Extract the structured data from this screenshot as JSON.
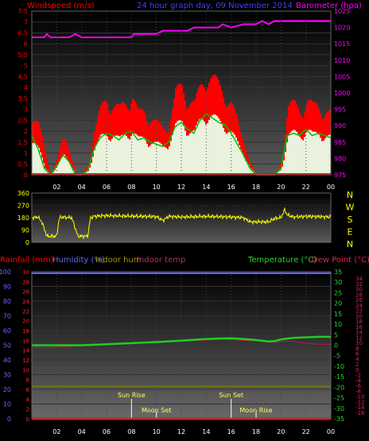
{
  "header": {
    "title": "24 hour graph day, 09 November 2014",
    "left_label": "Windspeed (m/s)",
    "right_label": "Barometer (hpa)"
  },
  "bottom_header": {
    "rainfall": "Rainfall (mm)",
    "humidity": "Humidity (%)",
    "indoor_hum": "Indoor hum",
    "indoor_temp": "Indoor temp",
    "temperature": "Temperature (°C)",
    "dew_point": "Dew Point (°C)"
  },
  "colors": {
    "windspeed_label": "#ff0000",
    "title": "#4040ff",
    "barometer": "#ff00ff",
    "gust": "#ff0000",
    "avg": "#00c000",
    "wind_light": "#e8ffe8",
    "direction": "#ffff00",
    "temperature": "#22cc22",
    "dewpoint": "#cc1144",
    "humidity": "#6666ff",
    "rain": "#ff0000",
    "indoor_hum": "#888800"
  },
  "chart_data": [
    {
      "type": "area",
      "name": "wind_baro",
      "x_ticks": [
        "02",
        "04",
        "06",
        "08",
        "10",
        "12",
        "14",
        "16",
        "18",
        "20",
        "22",
        "00"
      ],
      "y_left_ticks": [
        "7.5",
        "7",
        "6.5",
        "6",
        "5.5",
        "5",
        "4.5",
        "4",
        "3.5",
        "3",
        "2.5",
        "2",
        "1.5",
        "1",
        "0.5",
        "0"
      ],
      "y_right_ticks": [
        "1025",
        "1020",
        "1015",
        "1010",
        "1005",
        "1000",
        "995",
        "990",
        "985",
        "980",
        "975"
      ],
      "ylim_left": [
        0,
        7.5
      ],
      "ylim_right": [
        975,
        1025
      ],
      "xlim_hours": [
        0,
        24
      ],
      "gust": [
        [
          0,
          2.8
        ],
        [
          0.5,
          2.2
        ],
        [
          1,
          1.0
        ],
        [
          1.5,
          0
        ],
        [
          2,
          0.8
        ],
        [
          2.5,
          1.5
        ],
        [
          3,
          1.2
        ],
        [
          3.5,
          0
        ],
        [
          4,
          0
        ],
        [
          4.5,
          0.5
        ],
        [
          5,
          2.0
        ],
        [
          5.5,
          2.8
        ],
        [
          6,
          3.4
        ],
        [
          6.5,
          3.0
        ],
        [
          7,
          2.8
        ],
        [
          7.5,
          3.2
        ],
        [
          8,
          3.5
        ],
        [
          8.5,
          2.6
        ],
        [
          9,
          2.8
        ],
        [
          9.5,
          2.5
        ],
        [
          10,
          2.2
        ],
        [
          10.5,
          2.0
        ],
        [
          11,
          2.3
        ],
        [
          11.5,
          3.5
        ],
        [
          12,
          3.8
        ],
        [
          12.5,
          3.4
        ],
        [
          13,
          3.0
        ],
        [
          13.5,
          3.8
        ],
        [
          14,
          4.5
        ],
        [
          14.5,
          4.1
        ],
        [
          15,
          3.8
        ],
        [
          15.5,
          3.6
        ],
        [
          16,
          3.0
        ],
        [
          16.5,
          2.2
        ],
        [
          17,
          1.5
        ],
        [
          17.5,
          0.5
        ],
        [
          18,
          0
        ],
        [
          18.5,
          0
        ],
        [
          19,
          0
        ],
        [
          19.5,
          0
        ],
        [
          20,
          0.6
        ],
        [
          20.5,
          3.0
        ],
        [
          21,
          3.0
        ],
        [
          21.5,
          2.8
        ],
        [
          22,
          3.3
        ],
        [
          22.5,
          2.9
        ],
        [
          23,
          3.0
        ],
        [
          23.5,
          2.8
        ],
        [
          24,
          2.6
        ]
      ],
      "average": [
        [
          0,
          1.8
        ],
        [
          0.5,
          1.2
        ],
        [
          1,
          0.3
        ],
        [
          1.5,
          0
        ],
        [
          2,
          0.4
        ],
        [
          2.5,
          0.9
        ],
        [
          3,
          0.6
        ],
        [
          3.5,
          0
        ],
        [
          4,
          0
        ],
        [
          4.5,
          0.2
        ],
        [
          5,
          1.2
        ],
        [
          5.5,
          1.7
        ],
        [
          6,
          1.9
        ],
        [
          6.5,
          1.8
        ],
        [
          7,
          1.6
        ],
        [
          7.5,
          1.9
        ],
        [
          8,
          2.0
        ],
        [
          8.5,
          1.6
        ],
        [
          9,
          1.7
        ],
        [
          9.5,
          1.5
        ],
        [
          10,
          1.4
        ],
        [
          10.5,
          1.3
        ],
        [
          11,
          1.5
        ],
        [
          11.5,
          2.2
        ],
        [
          12,
          2.4
        ],
        [
          12.5,
          2.1
        ],
        [
          13,
          1.9
        ],
        [
          13.5,
          2.5
        ],
        [
          14,
          2.8
        ],
        [
          14.5,
          2.6
        ],
        [
          15,
          2.4
        ],
        [
          15.5,
          2.3
        ],
        [
          16,
          1.9
        ],
        [
          16.5,
          1.4
        ],
        [
          17,
          0.9
        ],
        [
          17.5,
          0.3
        ],
        [
          18,
          0
        ],
        [
          18.5,
          0
        ],
        [
          19,
          0
        ],
        [
          19.5,
          0
        ],
        [
          20,
          0.3
        ],
        [
          20.5,
          1.8
        ],
        [
          21,
          1.9
        ],
        [
          21.5,
          1.8
        ],
        [
          22,
          2.1
        ],
        [
          22.5,
          1.8
        ],
        [
          23,
          1.9
        ],
        [
          23.5,
          1.8
        ],
        [
          24,
          1.7
        ]
      ],
      "barometer": [
        [
          0,
          1017
        ],
        [
          1,
          1017
        ],
        [
          1.2,
          1018
        ],
        [
          1.5,
          1017
        ],
        [
          3,
          1017
        ],
        [
          3.5,
          1018
        ],
        [
          4,
          1017
        ],
        [
          8,
          1017
        ],
        [
          8.2,
          1018
        ],
        [
          10,
          1018
        ],
        [
          10.5,
          1019
        ],
        [
          12,
          1019
        ],
        [
          12.5,
          1019
        ],
        [
          13,
          1020
        ],
        [
          14,
          1020
        ],
        [
          15,
          1020
        ],
        [
          15.3,
          1021
        ],
        [
          16,
          1020
        ],
        [
          17,
          1021
        ],
        [
          18,
          1021
        ],
        [
          18.5,
          1022
        ],
        [
          19,
          1021
        ],
        [
          19.5,
          1022
        ],
        [
          20,
          1022
        ],
        [
          22,
          1022
        ],
        [
          24,
          1022
        ]
      ]
    },
    {
      "type": "line",
      "name": "wind_direction",
      "y_left_ticks": [
        "360",
        "270",
        "180",
        "90",
        "0"
      ],
      "y_right_ticks": [
        "N",
        "W",
        "S",
        "E",
        "N"
      ],
      "ylim": [
        0,
        360
      ],
      "xlim_hours": [
        0,
        24
      ],
      "direction": [
        [
          0,
          180
        ],
        [
          0.5,
          185
        ],
        [
          0.8,
          150
        ],
        [
          1,
          100
        ],
        [
          1.2,
          45
        ],
        [
          2,
          45
        ],
        [
          2.2,
          180
        ],
        [
          2.5,
          185
        ],
        [
          3.2,
          180
        ],
        [
          3.5,
          100
        ],
        [
          3.7,
          45
        ],
        [
          4.5,
          45
        ],
        [
          4.7,
          180
        ],
        [
          5,
          190
        ],
        [
          6,
          195
        ],
        [
          8,
          192
        ],
        [
          10,
          188
        ],
        [
          10.5,
          160
        ],
        [
          11,
          190
        ],
        [
          12,
          185
        ],
        [
          14,
          190
        ],
        [
          15,
          188
        ],
        [
          16,
          185
        ],
        [
          17,
          180
        ],
        [
          17.5,
          150
        ],
        [
          18,
          150
        ],
        [
          18.5,
          150
        ],
        [
          19,
          150
        ],
        [
          19.5,
          175
        ],
        [
          20,
          180
        ],
        [
          20.3,
          240
        ],
        [
          20.5,
          200
        ],
        [
          21,
          185
        ],
        [
          22,
          190
        ],
        [
          23,
          188
        ],
        [
          24,
          185
        ]
      ]
    },
    {
      "type": "line",
      "name": "temp_hum_rain",
      "x_ticks": [
        "02",
        "04",
        "06",
        "08",
        "10",
        "12",
        "14",
        "16",
        "18",
        "20",
        "22",
        "00"
      ],
      "y_left_ticks": [
        "100",
        "90",
        "80",
        "70",
        "60",
        "50",
        "40",
        "30",
        "20",
        "10",
        "0"
      ],
      "y_left2_ticks": [
        "30",
        "28",
        "26",
        "24",
        "22",
        "20",
        "18",
        "16",
        "14",
        "12",
        "10",
        "8",
        "6",
        "4",
        "2",
        "0"
      ],
      "y_temp_ticks": [
        "35",
        "30",
        "25",
        "20",
        "15",
        "10",
        "5",
        "0",
        "-5",
        "-10",
        "-15",
        "-20",
        "-25",
        "-30",
        "-35"
      ],
      "y_dew_ticks": [
        "34",
        "32",
        "30",
        "28",
        "26",
        "24",
        "22",
        "20",
        "18",
        "16",
        "14",
        "12",
        "10",
        "8",
        "6",
        "4",
        "2",
        "0",
        "-2",
        "-4",
        "-6",
        "-8",
        "-10",
        "-12",
        "-14",
        "-16"
      ],
      "humidity_ylim": [
        0,
        100
      ],
      "temp_ylim": [
        -35,
        35
      ],
      "xlim_hours": [
        0,
        24
      ],
      "humidity": [
        [
          0,
          99
        ],
        [
          24,
          99
        ]
      ],
      "indoor_hum": [
        [
          0,
          22
        ],
        [
          24,
          22
        ]
      ],
      "rainfall": [
        [
          0,
          0
        ],
        [
          24,
          0
        ]
      ],
      "temperature": [
        [
          0,
          0
        ],
        [
          2,
          0
        ],
        [
          4,
          0
        ],
        [
          6,
          0.5
        ],
        [
          8,
          1
        ],
        [
          10,
          1.5
        ],
        [
          12,
          2.2
        ],
        [
          14,
          3
        ],
        [
          15,
          3.2
        ],
        [
          16,
          3.3
        ],
        [
          17,
          3
        ],
        [
          18,
          2.5
        ],
        [
          18.5,
          2.2
        ],
        [
          19,
          1.8
        ],
        [
          19.5,
          2
        ],
        [
          20,
          2.8
        ],
        [
          21,
          3.5
        ],
        [
          22,
          3.8
        ],
        [
          23,
          4
        ],
        [
          24,
          4
        ]
      ],
      "dew_point": [
        [
          0,
          -1
        ],
        [
          1,
          -1.2
        ],
        [
          2,
          -1
        ],
        [
          4,
          0
        ],
        [
          6,
          0.5
        ],
        [
          8,
          1
        ],
        [
          10,
          1.5
        ],
        [
          12,
          2
        ],
        [
          14,
          2.5
        ],
        [
          15,
          2.8
        ],
        [
          16,
          2.7
        ],
        [
          17,
          2.3
        ],
        [
          18,
          2
        ],
        [
          19,
          1.5
        ],
        [
          19.5,
          1.5
        ],
        [
          20,
          1.8
        ],
        [
          21,
          2
        ],
        [
          22,
          1
        ],
        [
          23,
          0.5
        ],
        [
          24,
          0.5
        ]
      ],
      "annotations": [
        {
          "label": "Sun Rise",
          "hour": 8
        },
        {
          "label": "Moon Set",
          "hour": 10
        },
        {
          "label": "Sun Set",
          "hour": 16
        },
        {
          "label": "Moon Rise",
          "hour": 18
        }
      ]
    }
  ]
}
